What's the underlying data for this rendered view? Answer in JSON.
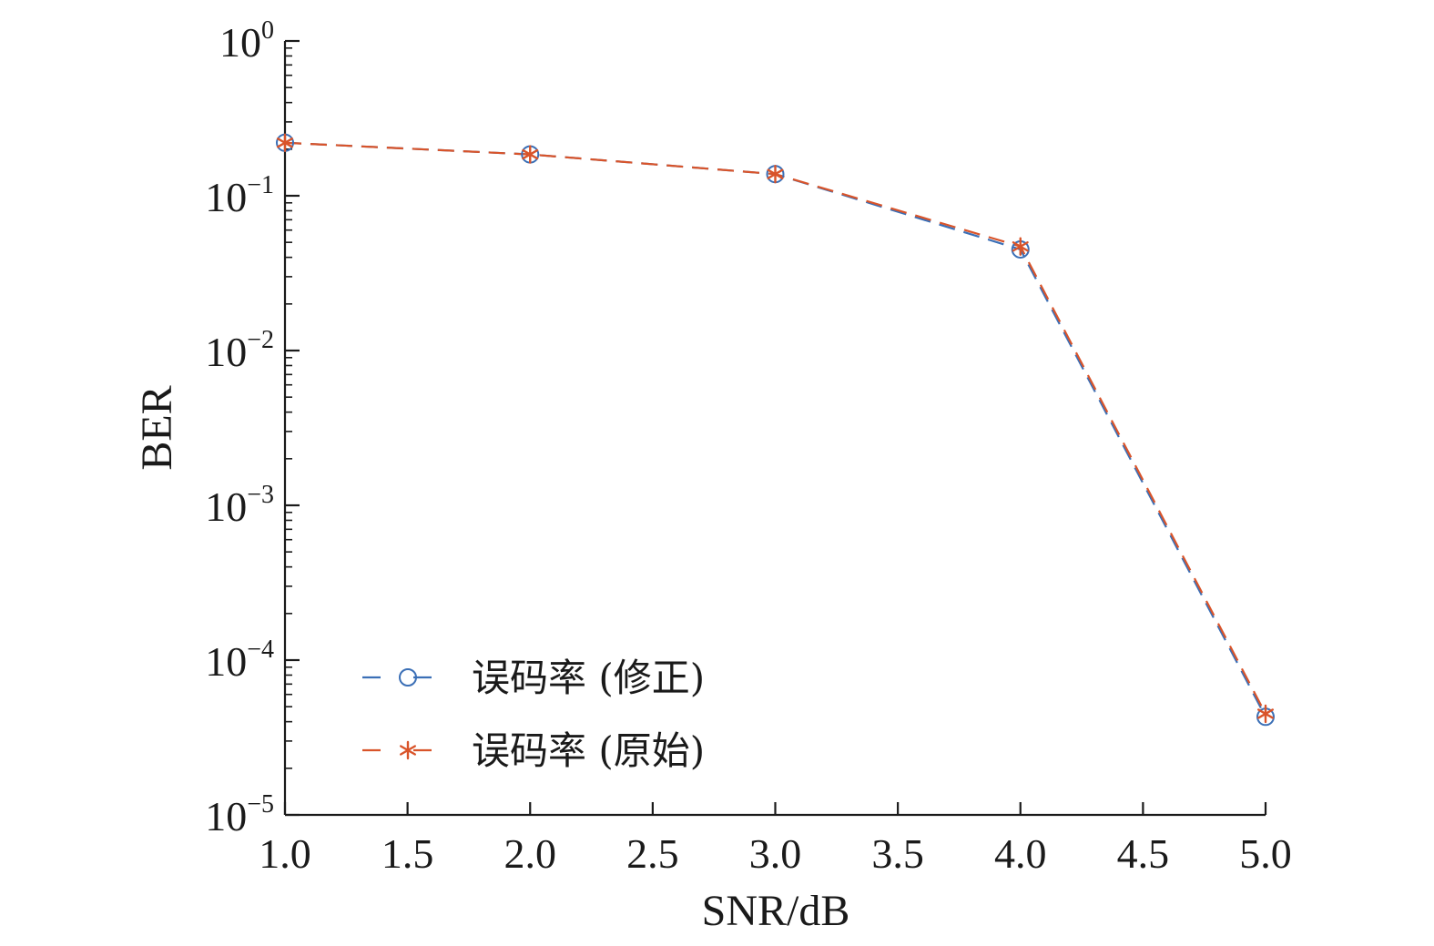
{
  "chart_data": {
    "type": "line",
    "x": [
      1,
      2,
      3,
      4,
      5
    ],
    "xlabel": "SNR/dB",
    "ylabel": "BER",
    "xlim": [
      1,
      5
    ],
    "ylim": [
      1e-05,
      1
    ],
    "yscale": "log",
    "x_ticks": [
      "1.0",
      "1.5",
      "2.0",
      "2.5",
      "3.0",
      "3.5",
      "4.0",
      "4.5",
      "5.0"
    ],
    "y_ticks": [
      {
        "base": "10",
        "exp": "0"
      },
      {
        "base": "10",
        "exp": "−1"
      },
      {
        "base": "10",
        "exp": "−2"
      },
      {
        "base": "10",
        "exp": "−3"
      },
      {
        "base": "10",
        "exp": "−4"
      },
      {
        "base": "10",
        "exp": "−5"
      }
    ],
    "grid": false,
    "legend_position": "bottom-left",
    "series": [
      {
        "name": "误码率 (修正)",
        "values": [
          0.22,
          0.185,
          0.138,
          0.045,
          4.3e-05
        ],
        "color": "#3b6fb6",
        "marker": "circle",
        "linestyle": "dashed"
      },
      {
        "name": "误码率 (原始)",
        "values": [
          0.22,
          0.185,
          0.138,
          0.047,
          4.5e-05
        ],
        "color": "#d9542a",
        "marker": "asterisk",
        "linestyle": "dashed"
      }
    ]
  }
}
